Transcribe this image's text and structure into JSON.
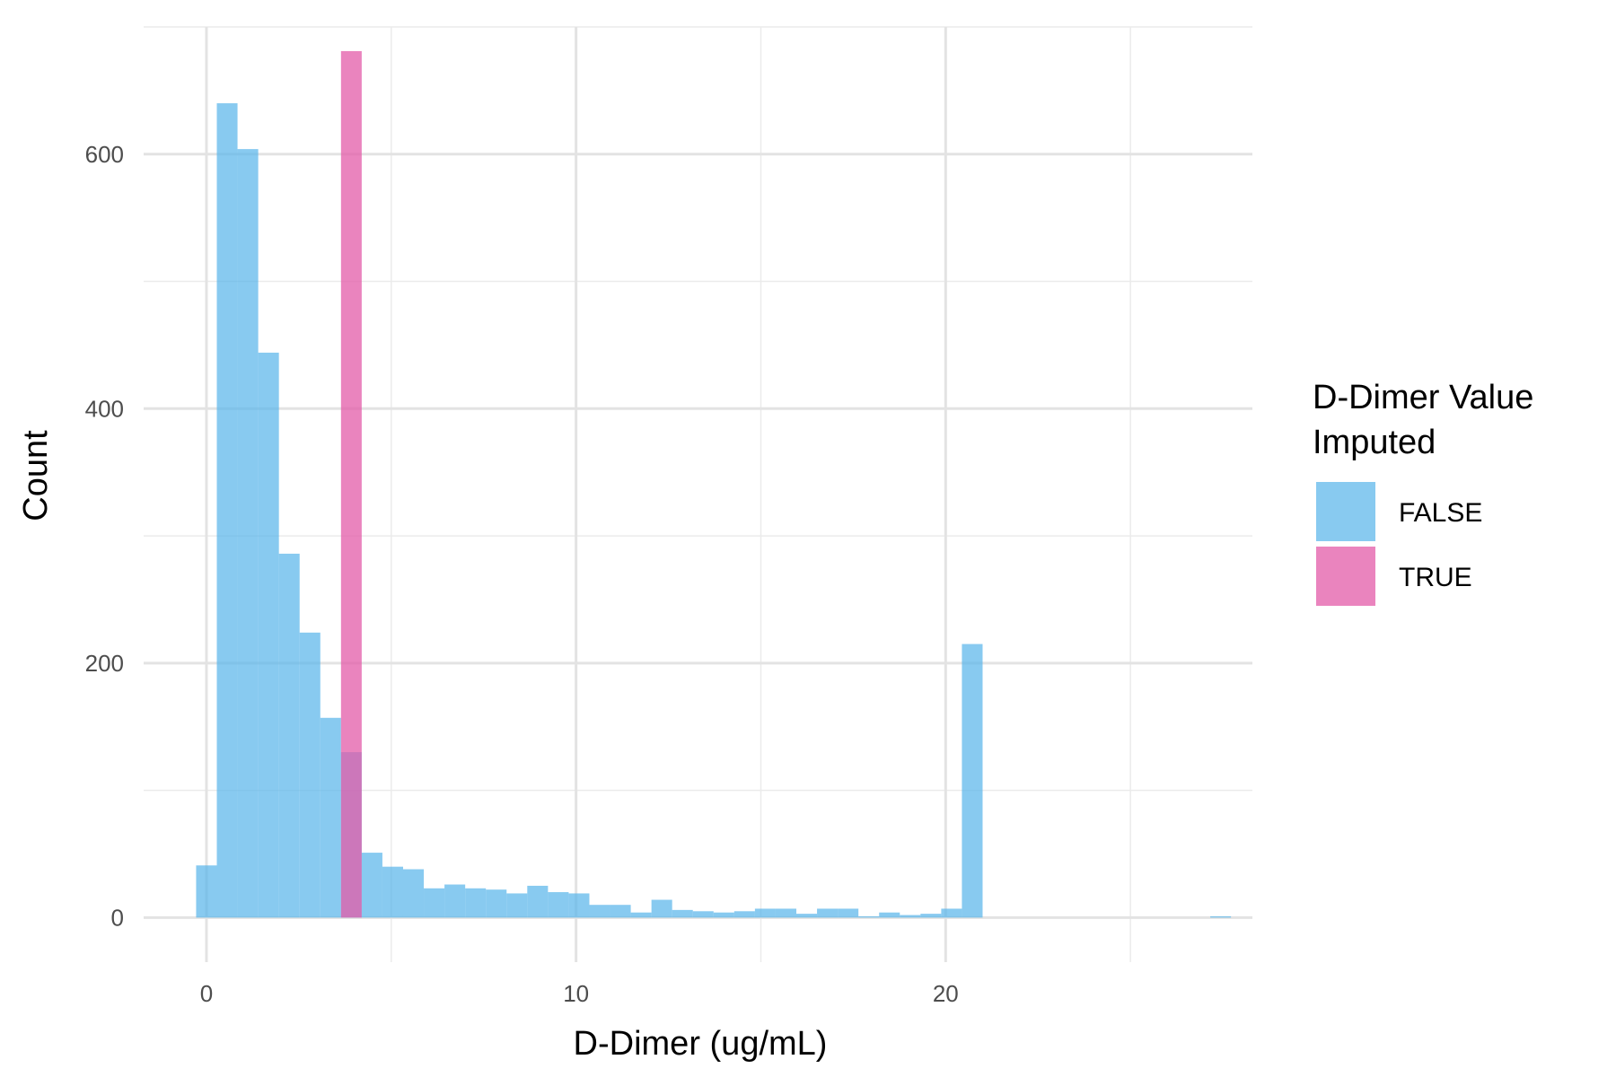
{
  "chart_data": {
    "type": "bar",
    "subtype": "histogram",
    "title": "",
    "xlabel": "D-Dimer (ug/mL)",
    "ylabel": "Count",
    "xlim": [
      -1.7,
      28.3
    ],
    "ylim": [
      -35,
      700
    ],
    "x_ticks": [
      0,
      10,
      20
    ],
    "x_tick_labels": [
      "0",
      "10",
      "20"
    ],
    "y_ticks": [
      0,
      200,
      400,
      600
    ],
    "y_tick_labels": [
      "0",
      "200",
      "400",
      "600"
    ],
    "grid": true,
    "bin_width": 0.56,
    "legend": {
      "title_lines": [
        "D-Dimer Value",
        "Imputed"
      ],
      "placement": "right",
      "entries": [
        "FALSE",
        "TRUE"
      ]
    },
    "series": [
      {
        "name": "FALSE",
        "color": "#56B4E9",
        "opacity": 0.7,
        "bins": [
          {
            "x": 0.0,
            "count": 41
          },
          {
            "x": 0.56,
            "count": 640
          },
          {
            "x": 1.12,
            "count": 604
          },
          {
            "x": 1.68,
            "count": 444
          },
          {
            "x": 2.24,
            "count": 286
          },
          {
            "x": 2.8,
            "count": 224
          },
          {
            "x": 3.36,
            "count": 157
          },
          {
            "x": 3.92,
            "count": 130
          },
          {
            "x": 4.48,
            "count": 51
          },
          {
            "x": 5.04,
            "count": 40
          },
          {
            "x": 5.6,
            "count": 38
          },
          {
            "x": 6.16,
            "count": 23
          },
          {
            "x": 6.72,
            "count": 26
          },
          {
            "x": 7.28,
            "count": 23
          },
          {
            "x": 7.84,
            "count": 22
          },
          {
            "x": 8.4,
            "count": 19
          },
          {
            "x": 8.96,
            "count": 25
          },
          {
            "x": 9.52,
            "count": 20
          },
          {
            "x": 10.08,
            "count": 19
          },
          {
            "x": 10.64,
            "count": 10
          },
          {
            "x": 11.2,
            "count": 10
          },
          {
            "x": 11.76,
            "count": 4
          },
          {
            "x": 12.32,
            "count": 14
          },
          {
            "x": 12.88,
            "count": 6
          },
          {
            "x": 13.44,
            "count": 5
          },
          {
            "x": 14.0,
            "count": 4
          },
          {
            "x": 14.56,
            "count": 5
          },
          {
            "x": 15.12,
            "count": 7
          },
          {
            "x": 15.68,
            "count": 7
          },
          {
            "x": 16.24,
            "count": 3
          },
          {
            "x": 16.8,
            "count": 7
          },
          {
            "x": 17.36,
            "count": 7
          },
          {
            "x": 17.92,
            "count": 1
          },
          {
            "x": 18.48,
            "count": 4
          },
          {
            "x": 19.04,
            "count": 2
          },
          {
            "x": 19.6,
            "count": 3
          },
          {
            "x": 20.16,
            "count": 7
          },
          {
            "x": 20.72,
            "count": 215
          },
          {
            "x": 27.44,
            "count": 1
          }
        ]
      },
      {
        "name": "TRUE",
        "color": "#E35BA8",
        "opacity": 0.75,
        "bins": [
          {
            "x": 3.92,
            "count": 681
          }
        ]
      }
    ]
  }
}
